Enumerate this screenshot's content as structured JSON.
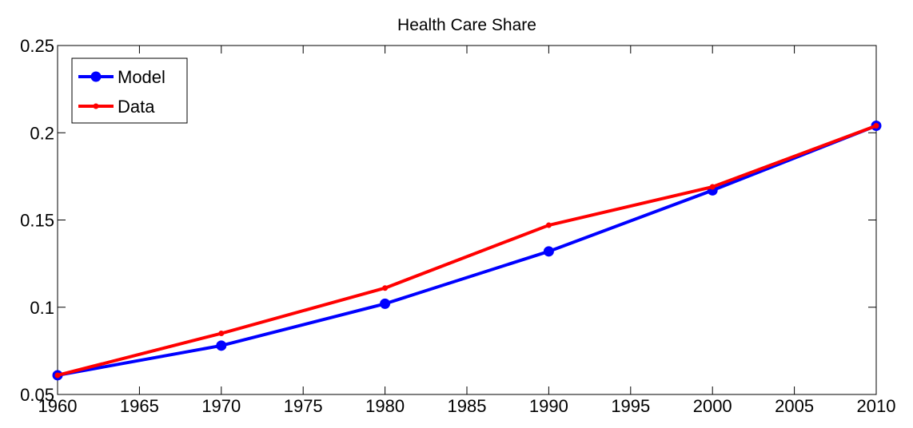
{
  "chart_data": {
    "type": "line",
    "title": "Health Care Share",
    "x": [
      1960,
      1970,
      1980,
      1990,
      2000,
      2010
    ],
    "series": [
      {
        "name": "Model",
        "color": "#0000ff",
        "marker": "circle",
        "values": [
          0.061,
          0.078,
          0.102,
          0.132,
          0.167,
          0.204
        ]
      },
      {
        "name": "Data",
        "color": "#ff0000",
        "marker": "dot",
        "values": [
          0.061,
          0.085,
          0.111,
          0.147,
          0.169,
          0.204
        ]
      }
    ],
    "xlim": [
      1960,
      2010
    ],
    "xticks": [
      1960,
      1965,
      1970,
      1975,
      1980,
      1985,
      1990,
      1995,
      2000,
      2005,
      2010
    ],
    "ylim": [
      0.05,
      0.25
    ],
    "yticks": [
      0.05,
      0.1,
      0.15,
      0.2,
      0.25
    ],
    "grid": false,
    "legend": "top-left"
  }
}
